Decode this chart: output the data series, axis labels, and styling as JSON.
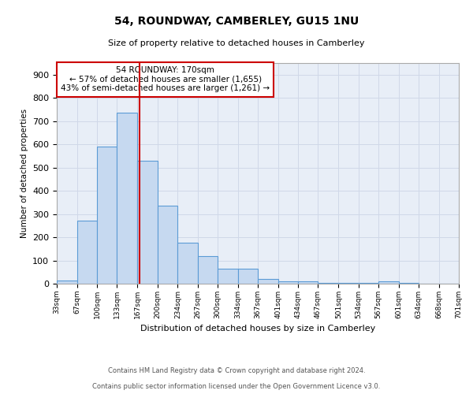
{
  "title": "54, ROUNDWAY, CAMBERLEY, GU15 1NU",
  "subtitle": "Size of property relative to detached houses in Camberley",
  "xlabel": "Distribution of detached houses by size in Camberley",
  "ylabel": "Number of detached properties",
  "footnote1": "Contains HM Land Registry data © Crown copyright and database right 2024.",
  "footnote2": "Contains public sector information licensed under the Open Government Licence v3.0.",
  "annotation_line1": "54 ROUNDWAY: 170sqm",
  "annotation_line2": "← 57% of detached houses are smaller (1,655)",
  "annotation_line3": "43% of semi-detached houses are larger (1,261) →",
  "property_value": 170,
  "bin_edges": [
    33,
    67,
    100,
    133,
    167,
    200,
    234,
    267,
    300,
    334,
    367,
    401,
    434,
    467,
    501,
    534,
    567,
    601,
    634,
    668,
    701
  ],
  "bar_heights": [
    15,
    270,
    590,
    735,
    530,
    335,
    175,
    120,
    65,
    65,
    20,
    10,
    10,
    5,
    5,
    5,
    10,
    3,
    1,
    1
  ],
  "bar_color": "#c6d9f0",
  "bar_edge_color": "#5b9bd5",
  "red_line_color": "#cc0000",
  "annotation_box_edge": "#cc0000",
  "grid_color": "#d0d8e8",
  "background_color": "#ffffff",
  "ylim": [
    0,
    950
  ],
  "yticks": [
    0,
    100,
    200,
    300,
    400,
    500,
    600,
    700,
    800,
    900
  ]
}
